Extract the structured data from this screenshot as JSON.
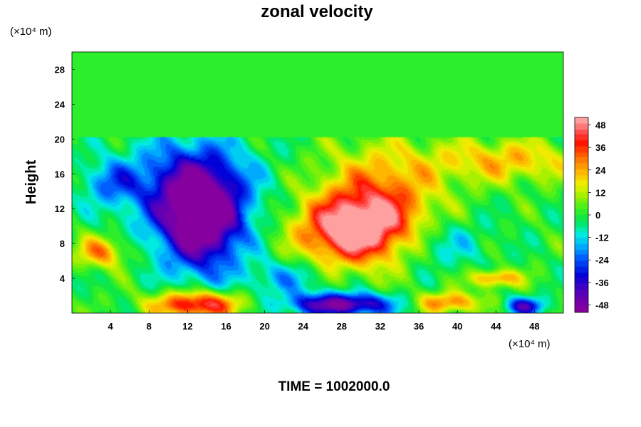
{
  "chart_data": {
    "type": "heatmap",
    "title": "zonal velocity",
    "ylabel": "Height",
    "x_unit": "(×10⁴ m)",
    "y_unit": "(×10⁴ m)",
    "footer": "TIME = 1002000.0",
    "xlim": [
      0,
      51
    ],
    "ylim": [
      0,
      30
    ],
    "x_ticks": [
      "4",
      "8",
      "12",
      "16",
      "20",
      "24",
      "28",
      "32",
      "36",
      "40",
      "44",
      "48"
    ],
    "x_tick_values": [
      4,
      8,
      12,
      16,
      20,
      24,
      28,
      32,
      36,
      40,
      44,
      48
    ],
    "y_ticks": [
      "4",
      "8",
      "12",
      "16",
      "20",
      "24",
      "28"
    ],
    "y_tick_values": [
      4,
      8,
      12,
      16,
      20,
      24,
      28
    ],
    "colorbar": {
      "min": -52,
      "max": 52,
      "tick_labels": [
        "48",
        "36",
        "24",
        "12",
        "0",
        "-12",
        "-24",
        "-36",
        "-48"
      ],
      "tick_values": [
        48,
        36,
        24,
        12,
        0,
        -12,
        -24,
        -36,
        -48
      ]
    },
    "features": [
      {
        "x": 13.5,
        "y": 10.5,
        "value": -52,
        "sx": 4.2,
        "sy": 6.0
      },
      {
        "x": 12.0,
        "y": 14.5,
        "value": -30,
        "sx": 6.5,
        "sy": 5.5
      },
      {
        "x": 29.0,
        "y": 9.5,
        "value": 48,
        "sx": 5.5,
        "sy": 3.8
      },
      {
        "x": 32.0,
        "y": 13.0,
        "value": 30,
        "sx": 6.0,
        "sy": 6.0
      },
      {
        "x": 45.0,
        "y": 17.5,
        "value": 22,
        "sx": 8.0,
        "sy": 2.5
      },
      {
        "x": 28.0,
        "y": 1.0,
        "value": -50,
        "sx": 5.5,
        "sy": 1.3
      },
      {
        "x": 13.0,
        "y": 1.0,
        "value": 48,
        "sx": 4.5,
        "sy": 1.5
      },
      {
        "x": 39.0,
        "y": 1.2,
        "value": 30,
        "sx": 3.5,
        "sy": 1.2
      },
      {
        "x": 3.0,
        "y": 7.0,
        "value": 28,
        "sx": 2.5,
        "sy": 1.8
      },
      {
        "x": 44.0,
        "y": 4.0,
        "value": 30,
        "sx": 2.5,
        "sy": 1.0
      },
      {
        "x": 47.0,
        "y": 0.8,
        "value": -36,
        "sx": 2.0,
        "sy": 1.0
      },
      {
        "x": 4.0,
        "y": 15.0,
        "value": -18,
        "sx": 3.0,
        "sy": 2.5
      },
      {
        "x": 38.0,
        "y": 8.0,
        "value": -14,
        "sx": 5.0,
        "sy": 3.0
      },
      {
        "x": 22.0,
        "y": 4.0,
        "value": -16,
        "sx": 4.0,
        "sy": 2.0
      }
    ]
  }
}
